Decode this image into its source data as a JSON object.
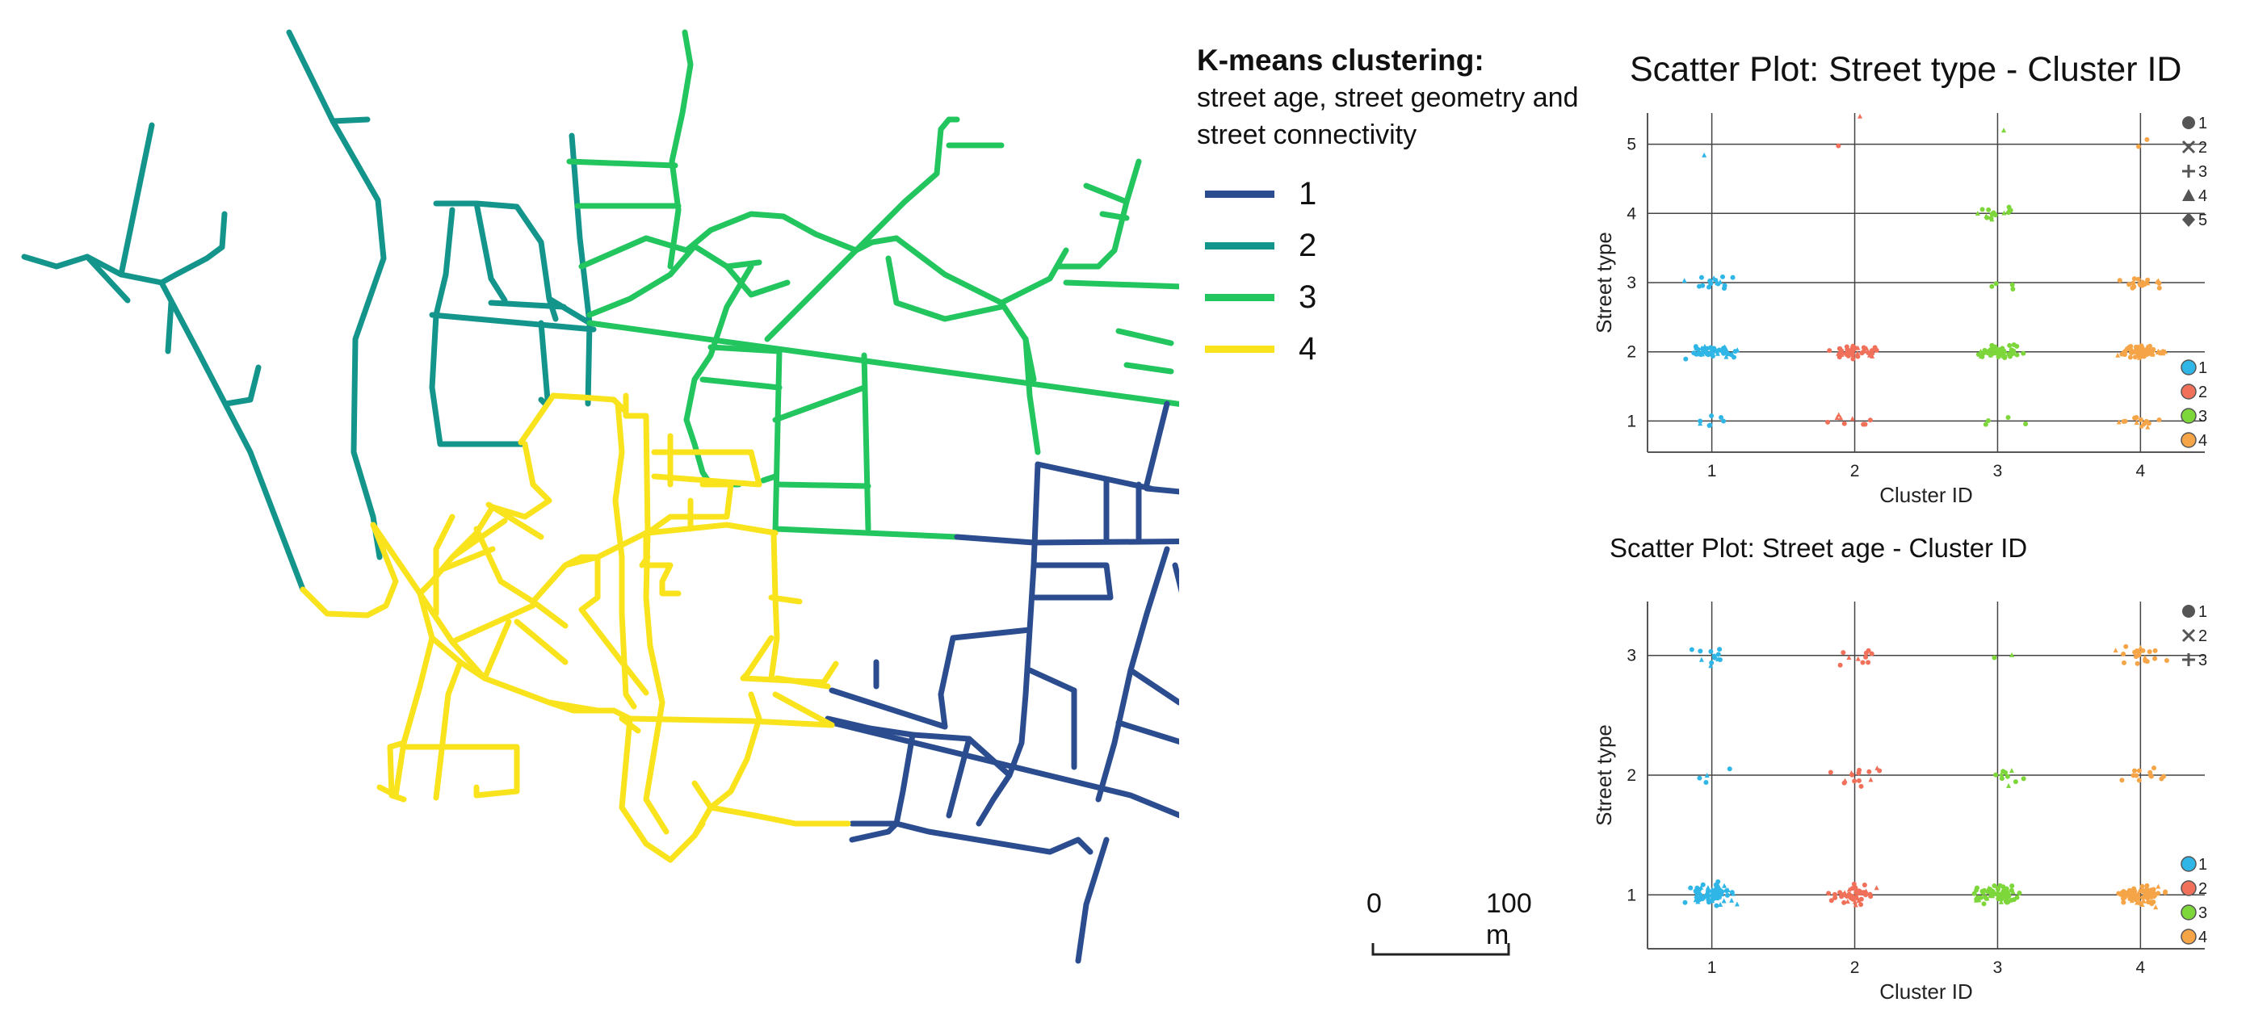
{
  "legend": {
    "title": "K-means clustering:",
    "subtitle_lines": [
      "street age, street geometry and",
      "street connectivity"
    ],
    "items": [
      {
        "label": "1",
        "color": "#2b4d8f"
      },
      {
        "label": "2",
        "color": "#14958c"
      },
      {
        "label": "3",
        "color": "#22c55e"
      },
      {
        "label": "4",
        "color": "#f9e31c"
      }
    ]
  },
  "scale_bar": {
    "start_label": "0",
    "end_label": "100 m"
  },
  "chart_data": [
    {
      "type": "scatter",
      "title": "Scatter Plot: Street type - Cluster ID",
      "xlabel": "Cluster ID",
      "ylabel": "Street type",
      "x_ticks": [
        "1",
        "2",
        "3",
        "4"
      ],
      "y_ticks": [
        "1",
        "2",
        "3",
        "4",
        "5"
      ],
      "xlim": [
        0.55,
        4.45
      ],
      "ylim": [
        0.55,
        5.45
      ],
      "grid": true,
      "shape_legend": [
        "1",
        "2",
        "3",
        "4",
        "5"
      ],
      "color_legend": [
        "1",
        "2",
        "3",
        "4"
      ],
      "legend_placement": "right",
      "series": [
        {
          "name": "1",
          "color": "#2fb6e6",
          "points": [
            [
              1,
              2,
              55
            ],
            [
              1,
              3,
              16
            ],
            [
              1,
              1,
              7
            ],
            [
              1,
              4.8,
              1
            ]
          ]
        },
        {
          "name": "2",
          "color": "#f0705a",
          "points": [
            [
              2,
              2,
              40
            ],
            [
              2,
              1,
              9
            ],
            [
              2,
              5.4,
              1
            ],
            [
              2,
              5,
              1
            ]
          ]
        },
        {
          "name": "3",
          "color": "#7dd63a",
          "points": [
            [
              3,
              2,
              60
            ],
            [
              3,
              4,
              16
            ],
            [
              3,
              3,
              4
            ],
            [
              3,
              5.1,
              1
            ],
            [
              3,
              1,
              4
            ]
          ]
        },
        {
          "name": "4",
          "color": "#f5a447",
          "points": [
            [
              4,
              2,
              75
            ],
            [
              4,
              3,
              20
            ],
            [
              4,
              1,
              15
            ],
            [
              4,
              5,
              2
            ]
          ]
        }
      ]
    },
    {
      "type": "scatter",
      "title": "Scatter Plot: Street age - Cluster ID",
      "xlabel": "Cluster ID",
      "ylabel": "Street type",
      "x_ticks": [
        "1",
        "2",
        "3",
        "4"
      ],
      "y_ticks": [
        "1",
        "2",
        "3"
      ],
      "xlim": [
        0.55,
        4.45
      ],
      "ylim": [
        0.55,
        3.45
      ],
      "grid": true,
      "shape_legend": [
        "1",
        "2",
        "3"
      ],
      "color_legend": [
        "1",
        "2",
        "3",
        "4"
      ],
      "legend_placement": "right",
      "series": [
        {
          "name": "1",
          "color": "#2fb6e6",
          "points": [
            [
              1,
              1,
              70
            ],
            [
              1,
              3,
              12
            ],
            [
              1,
              2,
              4
            ]
          ]
        },
        {
          "name": "2",
          "color": "#f0705a",
          "points": [
            [
              2,
              1,
              45
            ],
            [
              2,
              2,
              14
            ],
            [
              2,
              3,
              10
            ]
          ]
        },
        {
          "name": "3",
          "color": "#7dd63a",
          "points": [
            [
              3,
              1,
              75
            ],
            [
              3,
              2,
              10
            ],
            [
              3,
              3,
              2
            ]
          ]
        },
        {
          "name": "4",
          "color": "#f5a447",
          "points": [
            [
              4,
              1,
              80
            ],
            [
              4,
              2,
              12
            ],
            [
              4,
              3,
              20
            ]
          ]
        }
      ]
    }
  ]
}
